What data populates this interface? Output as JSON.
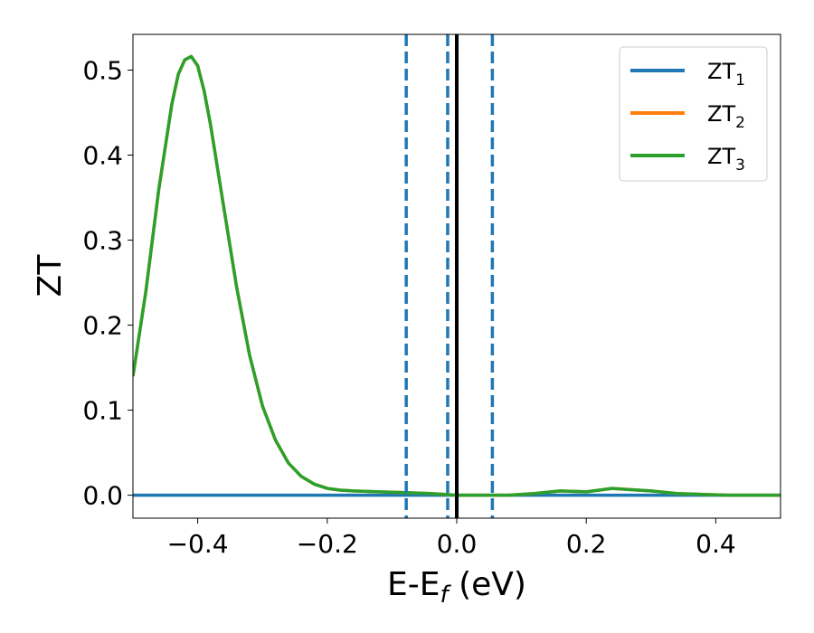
{
  "chart_data": {
    "type": "line",
    "title": "",
    "xlabel": "E-E",
    "xlabel_sub": "f",
    "xlabel_unit": " (eV)",
    "ylabel": "ZT",
    "xlim": [
      -0.5,
      0.5
    ],
    "ylim": [
      -0.027,
      0.542
    ],
    "xticks": [
      -0.4,
      -0.2,
      0.0,
      0.2,
      0.4
    ],
    "xtick_labels": [
      "−0.4",
      "−0.2",
      "0.0",
      "0.2",
      "0.4"
    ],
    "yticks": [
      0.0,
      0.1,
      0.2,
      0.3,
      0.4,
      0.5
    ],
    "ytick_labels": [
      "0.0",
      "0.1",
      "0.2",
      "0.3",
      "0.4",
      "0.5"
    ],
    "grid": false,
    "legend": "top-right",
    "series": [
      {
        "name": "ZT",
        "name_sub": "1",
        "color": "#1f77b4",
        "x": [
          -0.5,
          0.5
        ],
        "y": [
          0.0,
          0.0
        ]
      },
      {
        "name": "ZT",
        "name_sub": "2",
        "color": "#ff7f0e",
        "x": [
          -0.5,
          -0.48,
          -0.46,
          -0.44,
          -0.43,
          -0.42,
          -0.41,
          -0.4,
          -0.39,
          -0.38,
          -0.36,
          -0.34,
          -0.32,
          -0.3,
          -0.28,
          -0.26,
          -0.24,
          -0.22,
          -0.2,
          -0.18,
          -0.16,
          -0.12,
          -0.08,
          -0.04,
          0.0,
          0.04,
          0.08,
          0.12,
          0.16,
          0.2,
          0.24,
          0.28,
          0.3,
          0.34,
          0.38,
          0.42,
          0.46,
          0.5
        ],
        "y": [
          0.14,
          0.24,
          0.36,
          0.46,
          0.495,
          0.512,
          0.516,
          0.505,
          0.475,
          0.435,
          0.34,
          0.245,
          0.165,
          0.105,
          0.065,
          0.038,
          0.022,
          0.013,
          0.008,
          0.006,
          0.005,
          0.004,
          0.003,
          0.002,
          0.0,
          0.0,
          0.0,
          0.002,
          0.005,
          0.004,
          0.008,
          0.006,
          0.005,
          0.002,
          0.001,
          0.0,
          0.0,
          0.0
        ]
      },
      {
        "name": "ZT",
        "name_sub": "3",
        "color": "#2ca02c",
        "x": [
          -0.5,
          -0.48,
          -0.46,
          -0.44,
          -0.43,
          -0.42,
          -0.41,
          -0.4,
          -0.39,
          -0.38,
          -0.36,
          -0.34,
          -0.32,
          -0.3,
          -0.28,
          -0.26,
          -0.24,
          -0.22,
          -0.2,
          -0.18,
          -0.16,
          -0.12,
          -0.08,
          -0.04,
          0.0,
          0.04,
          0.08,
          0.12,
          0.16,
          0.2,
          0.24,
          0.28,
          0.3,
          0.34,
          0.38,
          0.42,
          0.46,
          0.5
        ],
        "y": [
          0.14,
          0.24,
          0.36,
          0.46,
          0.495,
          0.512,
          0.516,
          0.505,
          0.475,
          0.435,
          0.34,
          0.245,
          0.165,
          0.105,
          0.065,
          0.038,
          0.022,
          0.013,
          0.008,
          0.006,
          0.005,
          0.004,
          0.003,
          0.002,
          0.0,
          0.0,
          0.0,
          0.002,
          0.005,
          0.004,
          0.008,
          0.006,
          0.005,
          0.002,
          0.001,
          0.0,
          0.0,
          0.0
        ]
      }
    ],
    "vlines": [
      {
        "x": -0.078,
        "style": "dashed",
        "color": "#1f77b4"
      },
      {
        "x": -0.014,
        "style": "dashed",
        "color": "#1f77b4"
      },
      {
        "x": 0.0,
        "style": "solid",
        "color": "#000000"
      },
      {
        "x": 0.055,
        "style": "dashed",
        "color": "#1f77b4"
      }
    ]
  }
}
